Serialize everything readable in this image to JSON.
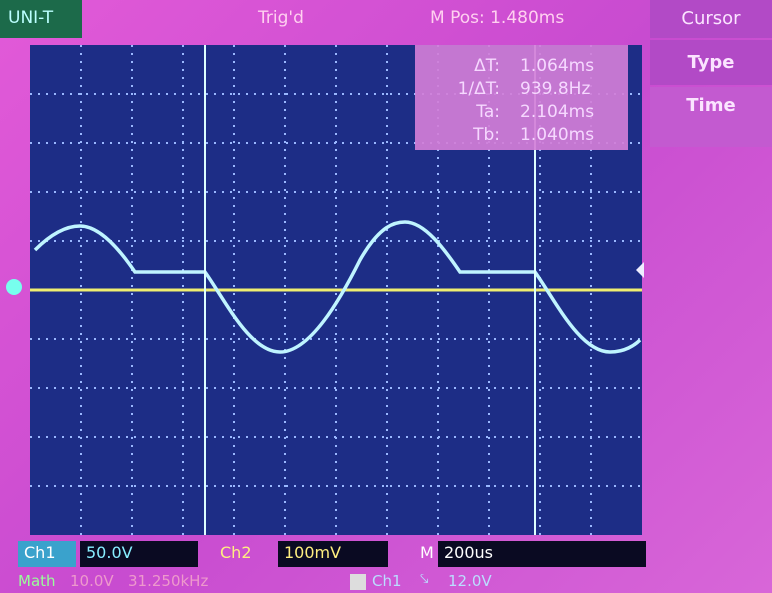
{
  "header": {
    "brand": "UNI-T",
    "status": "Trig'd",
    "position": "M Pos: 1.480ms"
  },
  "menu": {
    "title": "Cursor",
    "items": [
      "Type",
      "Time"
    ]
  },
  "readout": {
    "rows": [
      [
        "ΔT:",
        "1.064ms"
      ],
      [
        "1/ΔT:",
        "939.8Hz"
      ],
      [
        "Ta:",
        "2.104ms"
      ],
      [
        "Tb:",
        "1.040ms"
      ]
    ]
  },
  "footer": {
    "ch1_label": "Ch1",
    "ch1_scale": "50.0V",
    "ch2_label": "Ch2",
    "ch2_scale": "100mV",
    "time_label": "M",
    "time_scale": "200us",
    "math_label": "Math",
    "math_scale": "10.0V",
    "math_freq": "31.250kHz",
    "trigger_source": "Ch1",
    "trigger_level": "12.0V"
  }
}
